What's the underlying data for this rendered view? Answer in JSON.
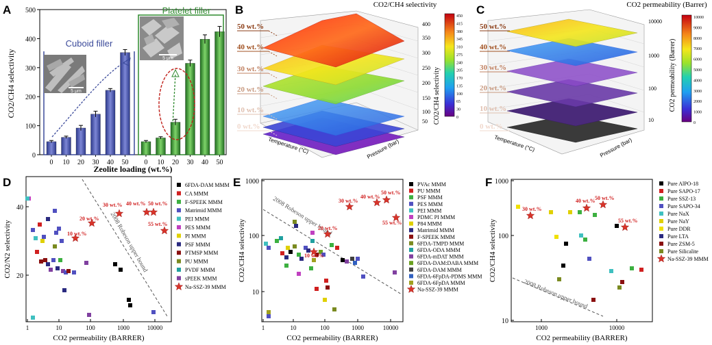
{
  "panels": {
    "A": {
      "letter": "A",
      "ylabel": "CO2/CH4 selectivity",
      "xlabel": "Zeolite loading (wt.%)",
      "cuboid_label": "Cuboid filler",
      "platelet_label": "Platelet filler",
      "scalebar_cuboid": "5 μm",
      "scalebar_platelet": "5 μm",
      "yticks": [
        "0",
        "100",
        "200",
        "300",
        "400",
        "500"
      ],
      "xticks": [
        "0",
        "10",
        "20",
        "30",
        "40",
        "50",
        "0",
        "10",
        "20",
        "30",
        "40",
        "50"
      ]
    },
    "B": {
      "letter": "B",
      "title": "CO2/CH4 selectivity",
      "colorbar_label": "CO2/CH4 selectivity",
      "colorbar_ticks": [
        "450",
        "415",
        "380",
        "345",
        "310",
        "275",
        "240",
        "205",
        "170",
        "135",
        "100",
        "65",
        "30",
        "0"
      ],
      "zticks": [
        "400",
        "350",
        "300",
        "250",
        "200",
        "150",
        "100",
        "50"
      ],
      "loadings": [
        "50 wt.%",
        "40 wt.%",
        "30 wt.%",
        "20 wt.%",
        "10 wt.%",
        "0 wt.%"
      ],
      "axis_temp": "Temperature (°C)",
      "axis_pressure": "Pressure (bar)"
    },
    "C": {
      "letter": "C",
      "title": "CO2 permeability (Barrer)",
      "colorbar_label": "CO2 permeability (Barrer)",
      "colorbar_ticks": [
        "10000",
        "9000",
        "8000",
        "7000",
        "6000",
        "5000",
        "4000",
        "3000",
        "2000",
        "1000",
        "0"
      ],
      "zticks": [
        "10000",
        "1000",
        "100",
        "10"
      ],
      "loadings": [
        "50 wt.%",
        "40 wt.%",
        "30 wt.%",
        "20 wt.%",
        "10 wt.%",
        "0 wt.%"
      ],
      "axis_temp": "Temperature (°C)",
      "axis_pressure": "Pressure (bar)"
    },
    "D": {
      "letter": "D",
      "ylabel": "CO2/N2 selectivity",
      "xlabel": "CO2 permeability (BARRER)",
      "robeson": "2008 Robeson upper bound",
      "yticks": [
        "40",
        "20"
      ],
      "xticks": [
        "1",
        "10",
        "100",
        "1000",
        "10000"
      ],
      "annotations": [
        "10 wt.%",
        "20 wt.%",
        "30 wt.%",
        "40 wt.%",
        "50 wt.%",
        "55 wt.%"
      ],
      "legend": [
        "6FDA-DAM MMM",
        "CA MMM",
        "F-SPEEK MMM",
        "Matrimid MMM",
        "PEI MMM",
        "PES MMM",
        "PI MMM",
        "PSF MMM",
        "PTMSP MMM",
        "PU MMM",
        "PVDF MMM",
        "sPEEK MMM",
        "Na-SSZ-39 MMM"
      ]
    },
    "E": {
      "letter": "E",
      "ylabel": "CO2/CH4 selectivity",
      "xlabel": "CO2 permeability (BARRER)",
      "robeson": "2008 Robeson upper bound",
      "yticks": [
        "1000",
        "100",
        "10"
      ],
      "xticks": [
        "1",
        "10",
        "100",
        "1000",
        "10000"
      ],
      "annotations": [
        "10 wt.%",
        "20 wt.%",
        "30 wt.%",
        "40 wt.%",
        "50 wt.%",
        "55 wt.%"
      ],
      "legend": [
        "PVAc MMM",
        "PU MMM",
        "PSF MMM",
        "PES MMM",
        "PEI MMM",
        "PDMC PI MMM",
        "P84 MMM",
        "Matrimid MMM",
        "F-SPEEK MMM",
        "6FDA-TMPD MMM",
        "6FDA-ODA MMM",
        "6FDA-mDAT MMM",
        "6FDA-DAM:DABA MMM",
        "6FDA-DAM MMM",
        "6FDA-6FpDA-PDMS MMM",
        "6FDA-6FpDA MMM",
        "Na-SSZ-39 MMM"
      ]
    },
    "F": {
      "letter": "F",
      "ylabel": "CO2/CH4 selectivity",
      "xlabel": "CO2 permeability (BARRER)",
      "robeson": "2008 Robeson upper bound",
      "yticks": [
        "1000",
        "100",
        "10"
      ],
      "xticks": [
        "1000",
        "10000"
      ],
      "annotations": [
        "30 wt.%",
        "40 wt.%",
        "50 wt.%",
        "55 wt.%"
      ],
      "legend": [
        "Pure AlPO-18",
        "Pure SAPO-17",
        "Pure SSZ-13",
        "Pure SAPO-34",
        "Pure NaX",
        "Pure NaY",
        "Pure DDR",
        "Pure LTA",
        "Pure ZSM-5",
        "Pure Silicalite",
        "Na-SSZ-39 MMM"
      ]
    }
  },
  "chart_data": [
    {
      "type": "bar",
      "panel": "A",
      "title": "",
      "xlabel": "Zeolite loading (wt.%)",
      "ylabel": "CO2/CH4 selectivity",
      "ylim": [
        0,
        500
      ],
      "series": [
        {
          "name": "Cuboid filler",
          "categories": [
            "0",
            "10",
            "20",
            "30",
            "40",
            "50"
          ],
          "values": [
            45,
            60,
            92,
            140,
            222,
            352
          ],
          "errors": [
            4,
            4,
            9,
            10,
            6,
            10
          ]
        },
        {
          "name": "Platelet filler",
          "categories": [
            "0",
            "10",
            "20",
            "30",
            "40",
            "50"
          ],
          "values": [
            45,
            58,
            112,
            315,
            398,
            424
          ],
          "errors": [
            4,
            4,
            10,
            11,
            15,
            18
          ]
        }
      ]
    }
  ]
}
